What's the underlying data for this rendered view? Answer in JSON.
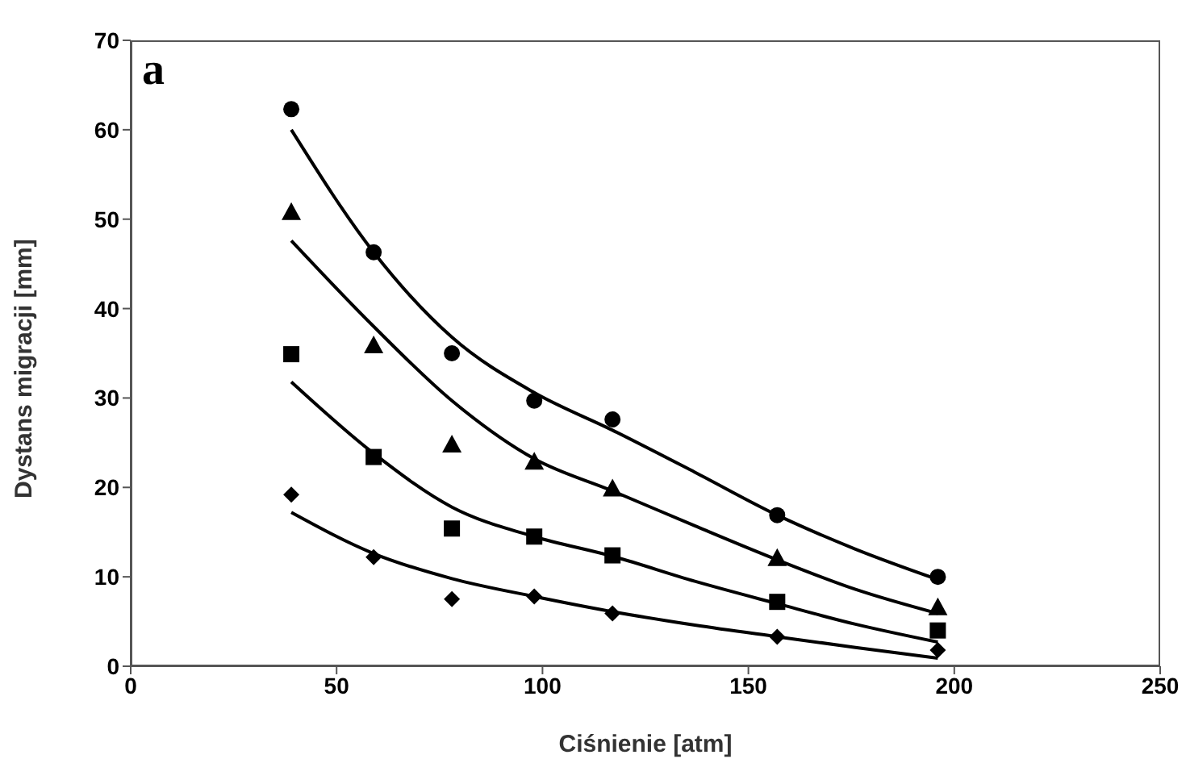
{
  "chart_data": {
    "type": "scatter",
    "xlabel": "Ciśnienie [atm]",
    "ylabel": "Dystans migracji [mm]",
    "annotations": [
      "a"
    ],
    "xlim": [
      0,
      250
    ],
    "xticks": [
      0,
      50,
      100,
      150,
      200,
      250
    ],
    "ylim": [
      0,
      70
    ],
    "yticks": [
      0,
      10,
      20,
      30,
      40,
      50,
      60,
      70
    ],
    "grid": false,
    "x": [
      39,
      59,
      78,
      98,
      117,
      157,
      196
    ],
    "series": [
      {
        "marker": "circle",
        "color": "#000000",
        "values": [
          62.3,
          46.3,
          35.0,
          29.7,
          27.6,
          16.9,
          10.0
        ]
      },
      {
        "marker": "triangle",
        "color": "#000000",
        "values": [
          50.8,
          35.9,
          24.8,
          22.9,
          19.9,
          12.1,
          6.6
        ]
      },
      {
        "marker": "square",
        "color": "#000000",
        "values": [
          34.9,
          23.4,
          15.4,
          14.5,
          12.4,
          7.2,
          4.0
        ]
      },
      {
        "marker": "diamond",
        "color": "#000000",
        "values": [
          19.2,
          12.2,
          7.5,
          7.8,
          5.9,
          3.3,
          1.8
        ]
      },
      {
        "type": "line",
        "marker": "none",
        "line_style": "solid",
        "color": "#000000",
        "x": [
          39,
          59,
          78,
          98,
          117,
          137,
          157,
          176,
          196
        ],
        "values": [
          60.0,
          46.3,
          36.8,
          30.6,
          26.4,
          21.7,
          16.9,
          13.1,
          9.7
        ]
      },
      {
        "type": "line",
        "marker": "none",
        "line_style": "solid",
        "color": "#000000",
        "x": [
          39,
          59,
          78,
          98,
          117,
          137,
          157,
          176,
          196
        ],
        "values": [
          47.6,
          38.0,
          29.7,
          23.2,
          19.6,
          15.7,
          11.9,
          8.6,
          5.9
        ]
      },
      {
        "type": "line",
        "marker": "none",
        "line_style": "solid",
        "color": "#000000",
        "x": [
          39,
          59,
          78,
          98,
          117,
          137,
          157,
          176,
          196
        ],
        "values": [
          31.8,
          23.8,
          17.8,
          14.5,
          12.3,
          9.5,
          7.0,
          4.7,
          2.7
        ]
      },
      {
        "type": "line",
        "marker": "none",
        "line_style": "solid",
        "color": "#000000",
        "x": [
          39,
          59,
          78,
          98,
          117,
          137,
          157,
          176,
          196
        ],
        "values": [
          17.2,
          12.6,
          9.8,
          7.8,
          6.1,
          4.6,
          3.3,
          2.1,
          0.9
        ]
      }
    ]
  }
}
